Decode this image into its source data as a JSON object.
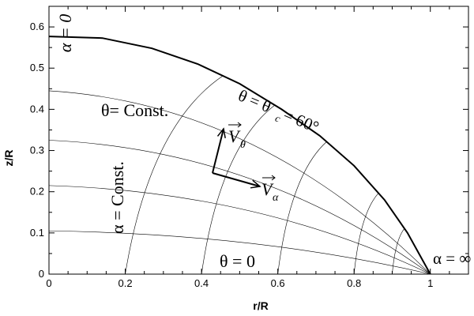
{
  "figure": {
    "x_axis_title": "r/R",
    "y_axis_title": "z/R",
    "x_ticks": [
      "0",
      "0.2",
      "0.4",
      "0.6",
      "0.8",
      "1"
    ],
    "y_ticks": [
      "0",
      "0.1",
      "0.2",
      "0.3",
      "0.4",
      "0.5",
      "0.6"
    ],
    "annotations": {
      "alpha_zero": "α = 0",
      "alpha_inf": "α = ∞",
      "theta_const": "θ= Const.",
      "alpha_const": "α = Const.",
      "theta_zero": "θ = 0",
      "theta_c_left": "θ = θ",
      "theta_c_sub": "c",
      "theta_c_right": "= 60°",
      "v_theta": "V",
      "v_theta_sub": "θ",
      "v_alpha": "V",
      "v_alpha_sub": "α"
    }
  },
  "chart_data": {
    "type": "line",
    "xlabel": "r/R",
    "ylabel": "z/R",
    "xlim": [
      0,
      1.1
    ],
    "ylim": [
      0,
      0.65
    ],
    "boundary_curve": {
      "x": [
        0,
        0.14,
        0.27,
        0.39,
        0.5,
        0.61,
        0.71,
        0.8,
        0.88,
        0.94,
        1.0
      ],
      "y": [
        0.577,
        0.573,
        0.548,
        0.51,
        0.462,
        0.4,
        0.336,
        0.263,
        0.18,
        0.1,
        0.0
      ]
    },
    "theta_const_lines_intercepts": [
      0.105,
      0.215,
      0.325,
      0.445
    ],
    "alpha_const_lines_base": [
      0.2,
      0.4,
      0.6,
      0.8,
      0.9
    ]
  }
}
